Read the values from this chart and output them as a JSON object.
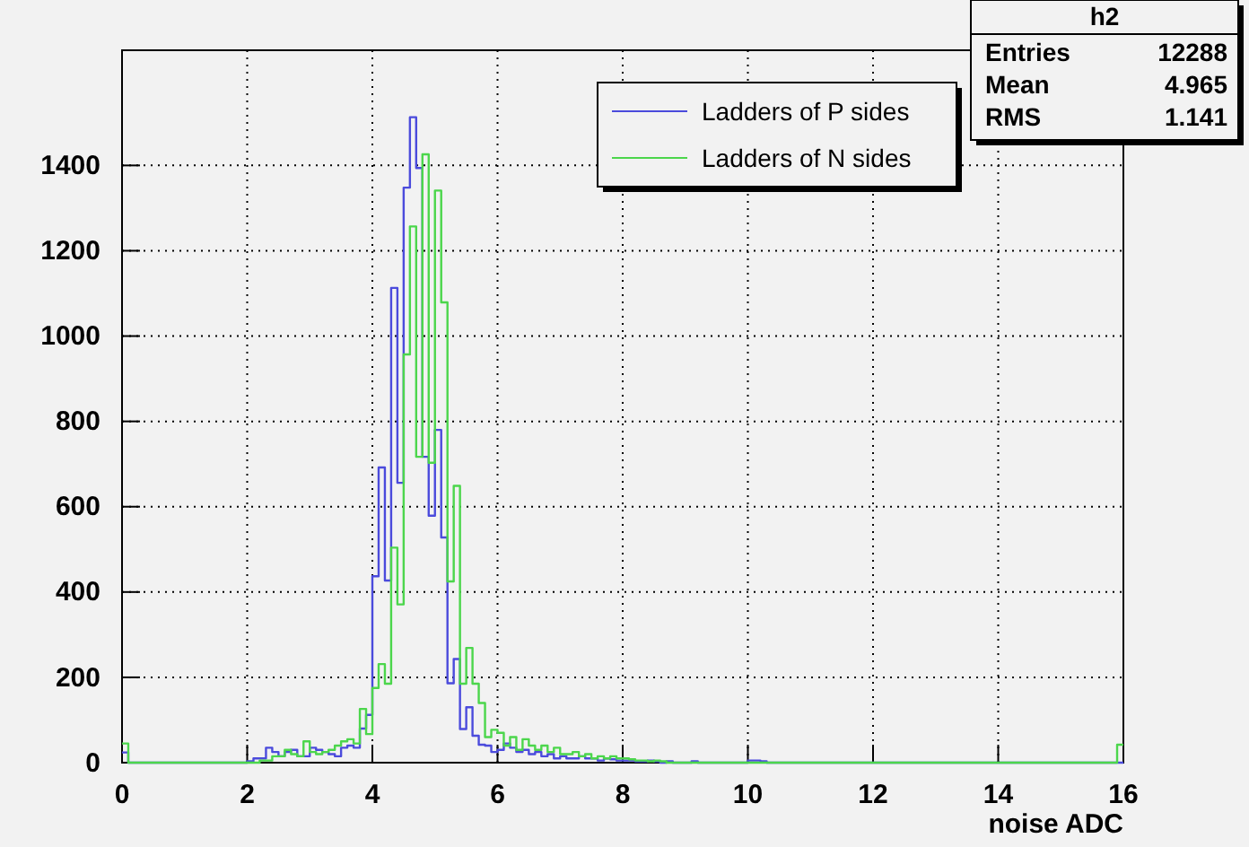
{
  "chart_data": {
    "type": "histogram",
    "xlabel": "noise ADC",
    "bins": [
      0,
      0.1,
      0.2,
      0.3,
      0.4,
      0.5,
      0.6,
      0.7,
      0.8,
      0.9,
      1,
      1.1,
      1.2,
      1.3,
      1.4,
      1.5,
      1.6,
      1.7,
      1.8,
      1.9,
      2,
      2.1,
      2.2,
      2.3,
      2.4,
      2.5,
      2.6,
      2.7,
      2.8,
      2.9,
      3,
      3.1,
      3.2,
      3.3,
      3.4,
      3.5,
      3.6,
      3.7,
      3.8,
      3.9,
      4,
      4.1,
      4.2,
      4.3,
      4.4,
      4.5,
      4.6,
      4.7,
      4.8,
      4.9,
      5,
      5.1,
      5.2,
      5.3,
      5.4,
      5.5,
      5.6,
      5.7,
      5.8,
      5.9,
      6,
      6.1,
      6.2,
      6.3,
      6.4,
      6.5,
      6.6,
      6.7,
      6.8,
      6.9,
      7,
      7.1,
      7.2,
      7.3,
      7.4,
      7.5,
      7.6,
      7.7,
      7.8,
      7.9,
      8,
      8.1,
      8.2,
      8.3,
      8.4,
      8.5,
      8.6,
      8.7,
      8.8,
      8.9,
      9,
      9.1,
      9.2,
      9.3,
      9.4,
      9.5,
      9.6,
      9.7,
      9.8,
      9.9,
      10,
      10.1,
      10.2,
      10.3,
      10.4,
      10.5,
      10.6,
      10.7,
      10.8,
      10.9,
      11,
      11.1,
      11.2,
      11.3,
      11.4,
      11.5,
      11.6,
      11.7,
      11.8,
      11.9,
      12,
      12.1,
      12.2,
      12.3,
      12.4,
      12.5,
      12.6,
      12.7,
      12.8,
      12.9,
      13,
      13.1,
      13.2,
      13.3,
      13.4,
      13.5,
      13.6,
      13.7,
      13.8,
      13.9,
      14,
      14.1,
      14.2,
      14.3,
      14.4,
      14.5,
      14.6,
      14.7,
      14.8,
      14.9,
      15,
      15.1,
      15.2,
      15.3,
      15.4,
      15.5,
      15.6,
      15.7,
      15.8,
      15.9,
      16
    ],
    "series": [
      {
        "name": "Ladders of P sides",
        "color": "#4b4bdc",
        "values": [
          24,
          0,
          0,
          0,
          0,
          0,
          0,
          0,
          0,
          0,
          0,
          0,
          0,
          0,
          0,
          0,
          0,
          0,
          0,
          0,
          3,
          10,
          10,
          35,
          25,
          15,
          25,
          30,
          15,
          15,
          35,
          30,
          25,
          20,
          15,
          35,
          40,
          35,
          80,
          112,
          437,
          692,
          427,
          1113,
          656,
          1348,
          1513,
          1394,
          717,
          579,
          780,
          528,
          186,
          243,
          79,
          130,
          63,
          42,
          40,
          25,
          30,
          45,
          35,
          25,
          30,
          20,
          25,
          15,
          20,
          10,
          15,
          10,
          10,
          15,
          10,
          10,
          5,
          10,
          8,
          5,
          5,
          5,
          3,
          3,
          5,
          3,
          0,
          3,
          0,
          0,
          0,
          3,
          0,
          0,
          0,
          0,
          0,
          0,
          0,
          0,
          5,
          5,
          3,
          0,
          0,
          0,
          0,
          0,
          0,
          0,
          0,
          0,
          0,
          0,
          0,
          0,
          0,
          0,
          0,
          0,
          0,
          0,
          0,
          0,
          0,
          0,
          0,
          0,
          0,
          0,
          0,
          0,
          0,
          0,
          0,
          0,
          0,
          0,
          0,
          0,
          0,
          0,
          0,
          0,
          0,
          0,
          0,
          0,
          0,
          0,
          0,
          0,
          0,
          0,
          0,
          0,
          0,
          0,
          0,
          0
        ]
      },
      {
        "name": "Ladders of N sides",
        "color": "#4cd64c",
        "values": [
          45,
          0,
          0,
          0,
          0,
          0,
          0,
          0,
          0,
          0,
          0,
          0,
          0,
          0,
          0,
          0,
          0,
          0,
          0,
          0,
          0,
          0,
          5,
          5,
          15,
          15,
          30,
          20,
          15,
          50,
          25,
          20,
          25,
          30,
          40,
          50,
          55,
          45,
          126,
          67,
          175,
          231,
          185,
          504,
          371,
          957,
          1257,
          717,
          1426,
          703,
          1341,
          1079,
          425,
          649,
          185,
          269,
          185,
          140,
          60,
          77,
          70,
          40,
          60,
          30,
          55,
          40,
          30,
          40,
          25,
          35,
          20,
          20,
          25,
          15,
          20,
          10,
          15,
          10,
          15,
          10,
          10,
          8,
          5,
          5,
          3,
          5,
          3,
          0,
          0,
          0,
          0,
          0,
          0,
          0,
          0,
          0,
          0,
          0,
          0,
          0,
          0,
          0,
          0,
          0,
          0,
          0,
          0,
          0,
          0,
          0,
          0,
          0,
          0,
          0,
          0,
          0,
          0,
          0,
          0,
          0,
          0,
          0,
          0,
          0,
          0,
          0,
          0,
          0,
          0,
          0,
          0,
          0,
          0,
          0,
          0,
          0,
          0,
          0,
          0,
          0,
          0,
          0,
          0,
          0,
          0,
          0,
          0,
          0,
          0,
          0,
          0,
          0,
          0,
          0,
          0,
          0,
          0,
          0,
          0,
          42
        ]
      }
    ],
    "xlim": [
      0,
      16
    ],
    "xticks": [
      0,
      2,
      4,
      6,
      8,
      10,
      12,
      14,
      16
    ],
    "ylim": [
      0,
      1670
    ],
    "yticks": [
      0,
      200,
      400,
      600,
      800,
      1000,
      1200,
      1400
    ],
    "grid": true,
    "legend": "top right",
    "annotations": [
      "h2",
      "Entries 12288",
      "Mean 4.965",
      "RMS 1.141"
    ]
  }
}
